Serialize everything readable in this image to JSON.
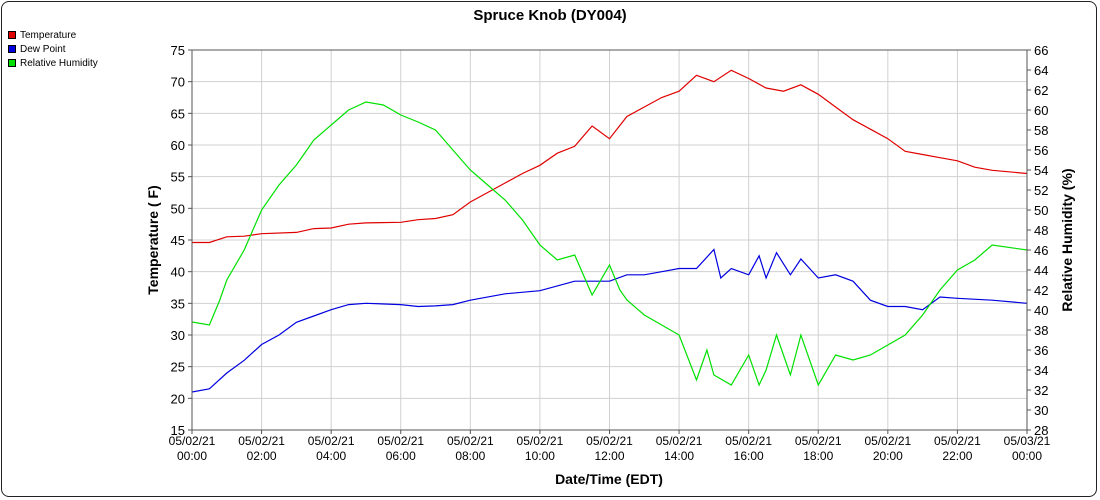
{
  "chart_data": {
    "type": "line",
    "title": "Spruce Knob (DY004)",
    "xlabel": "Date/Time (EDT)",
    "ylabel": "Temperature ( F)",
    "y2label": "Relative Humidity (%)",
    "ylim": [
      15,
      75
    ],
    "y2lim": [
      28,
      66
    ],
    "yticks": [
      "15",
      "20",
      "25",
      "30",
      "35",
      "40",
      "45",
      "50",
      "55",
      "60",
      "65",
      "70",
      "75"
    ],
    "y2ticks": [
      "28",
      "30",
      "32",
      "34",
      "36",
      "38",
      "40",
      "42",
      "44",
      "46",
      "48",
      "50",
      "52",
      "54",
      "56",
      "58",
      "60",
      "62",
      "64",
      "66"
    ],
    "x_ticks": [
      {
        "hour": 0,
        "date": "05/02/21",
        "time": "00:00"
      },
      {
        "hour": 2,
        "date": "05/02/21",
        "time": "02:00"
      },
      {
        "hour": 4,
        "date": "05/02/21",
        "time": "04:00"
      },
      {
        "hour": 6,
        "date": "05/02/21",
        "time": "06:00"
      },
      {
        "hour": 8,
        "date": "05/02/21",
        "time": "08:00"
      },
      {
        "hour": 10,
        "date": "05/02/21",
        "time": "10:00"
      },
      {
        "hour": 12,
        "date": "05/02/21",
        "time": "12:00"
      },
      {
        "hour": 14,
        "date": "05/02/21",
        "time": "14:00"
      },
      {
        "hour": 16,
        "date": "05/02/21",
        "time": "16:00"
      },
      {
        "hour": 18,
        "date": "05/02/21",
        "time": "18:00"
      },
      {
        "hour": 20,
        "date": "05/02/21",
        "time": "20:00"
      },
      {
        "hour": 22,
        "date": "05/02/21",
        "time": "22:00"
      },
      {
        "hour": 24,
        "date": "05/03/21",
        "time": "00:00"
      }
    ],
    "grid": true,
    "legend_position": "top-left",
    "series": [
      {
        "name": "Temperature",
        "color": "#e00000",
        "axis": "left",
        "points": [
          [
            0,
            44.6
          ],
          [
            0.5,
            44.6
          ],
          [
            1,
            45.5
          ],
          [
            1.5,
            45.6
          ],
          [
            2,
            46.0
          ],
          [
            3,
            46.2
          ],
          [
            3.5,
            46.8
          ],
          [
            4,
            46.9
          ],
          [
            4.5,
            47.5
          ],
          [
            5,
            47.7
          ],
          [
            6,
            47.8
          ],
          [
            6.5,
            48.2
          ],
          [
            7,
            48.4
          ],
          [
            7.5,
            49.0
          ],
          [
            8,
            51.0
          ],
          [
            8.5,
            52.5
          ],
          [
            9,
            54.0
          ],
          [
            9.5,
            55.5
          ],
          [
            10,
            56.8
          ],
          [
            10.5,
            58.7
          ],
          [
            11,
            59.8
          ],
          [
            11.5,
            63.0
          ],
          [
            12,
            61.0
          ],
          [
            12.5,
            64.5
          ],
          [
            13,
            66.0
          ],
          [
            13.5,
            67.5
          ],
          [
            14,
            68.5
          ],
          [
            14.5,
            71.0
          ],
          [
            15,
            70.0
          ],
          [
            15.5,
            71.8
          ],
          [
            16,
            70.5
          ],
          [
            16.5,
            69.0
          ],
          [
            17,
            68.5
          ],
          [
            17.5,
            69.5
          ],
          [
            18,
            68.0
          ],
          [
            18.5,
            66.0
          ],
          [
            19,
            64.0
          ],
          [
            19.5,
            62.5
          ],
          [
            20,
            61.0
          ],
          [
            20.5,
            59.0
          ],
          [
            21,
            58.5
          ],
          [
            21.5,
            58.0
          ],
          [
            22,
            57.5
          ],
          [
            22.5,
            56.5
          ],
          [
            23,
            56.0
          ],
          [
            24,
            55.5
          ]
        ]
      },
      {
        "name": "Dew Point",
        "color": "#0000e0",
        "axis": "left",
        "points": [
          [
            0,
            21.0
          ],
          [
            0.5,
            21.5
          ],
          [
            1,
            24.0
          ],
          [
            1.5,
            26.0
          ],
          [
            2,
            28.5
          ],
          [
            2.5,
            30.0
          ],
          [
            3,
            32.0
          ],
          [
            3.5,
            33.0
          ],
          [
            4,
            34.0
          ],
          [
            4.5,
            34.8
          ],
          [
            5,
            35.0
          ],
          [
            6,
            34.8
          ],
          [
            6.5,
            34.5
          ],
          [
            7,
            34.6
          ],
          [
            7.5,
            34.8
          ],
          [
            8,
            35.5
          ],
          [
            9,
            36.5
          ],
          [
            10,
            37.0
          ],
          [
            11,
            38.5
          ],
          [
            12,
            38.5
          ],
          [
            12.5,
            39.5
          ],
          [
            13,
            39.5
          ],
          [
            13.5,
            40.0
          ],
          [
            14,
            40.5
          ],
          [
            14.5,
            40.5
          ],
          [
            15,
            43.5
          ],
          [
            15.2,
            39.0
          ],
          [
            15.5,
            40.5
          ],
          [
            16,
            39.5
          ],
          [
            16.3,
            42.5
          ],
          [
            16.5,
            39.0
          ],
          [
            16.8,
            43.0
          ],
          [
            17.2,
            39.5
          ],
          [
            17.5,
            42.0
          ],
          [
            18,
            39.0
          ],
          [
            18.5,
            39.5
          ],
          [
            19,
            38.5
          ],
          [
            19.5,
            35.5
          ],
          [
            20,
            34.5
          ],
          [
            20.5,
            34.5
          ],
          [
            21,
            34.0
          ],
          [
            21.5,
            36.0
          ],
          [
            22,
            35.8
          ],
          [
            23,
            35.5
          ],
          [
            24,
            35.0
          ]
        ]
      },
      {
        "name": "Relative Humidity",
        "color": "#00e000",
        "axis": "right",
        "points": [
          [
            0,
            38.8
          ],
          [
            0.5,
            38.5
          ],
          [
            0.8,
            41.0
          ],
          [
            1,
            43.0
          ],
          [
            1.5,
            46.0
          ],
          [
            2,
            50.0
          ],
          [
            2.5,
            52.5
          ],
          [
            3,
            54.5
          ],
          [
            3.5,
            57.0
          ],
          [
            4,
            58.5
          ],
          [
            4.5,
            60.0
          ],
          [
            5,
            60.8
          ],
          [
            5.5,
            60.5
          ],
          [
            6,
            59.5
          ],
          [
            6.5,
            58.8
          ],
          [
            7,
            58.0
          ],
          [
            7.5,
            56.0
          ],
          [
            8,
            54.0
          ],
          [
            8.5,
            52.5
          ],
          [
            9,
            51.0
          ],
          [
            9.5,
            49.0
          ],
          [
            10,
            46.5
          ],
          [
            10.5,
            45.0
          ],
          [
            11,
            45.5
          ],
          [
            11.5,
            41.5
          ],
          [
            12,
            44.5
          ],
          [
            12.3,
            42.0
          ],
          [
            12.5,
            41.0
          ],
          [
            13,
            39.5
          ],
          [
            13.5,
            38.5
          ],
          [
            14,
            37.5
          ],
          [
            14.5,
            33.0
          ],
          [
            14.8,
            36.0
          ],
          [
            15,
            33.5
          ],
          [
            15.5,
            32.5
          ],
          [
            16,
            35.5
          ],
          [
            16.3,
            32.5
          ],
          [
            16.5,
            34.0
          ],
          [
            16.8,
            37.5
          ],
          [
            17.2,
            33.5
          ],
          [
            17.5,
            37.5
          ],
          [
            18,
            32.5
          ],
          [
            18.5,
            35.5
          ],
          [
            19,
            35.0
          ],
          [
            19.5,
            35.5
          ],
          [
            20,
            36.5
          ],
          [
            20.5,
            37.5
          ],
          [
            21,
            39.5
          ],
          [
            21.5,
            42.0
          ],
          [
            22,
            44.0
          ],
          [
            22.5,
            45.0
          ],
          [
            23,
            46.5
          ],
          [
            24,
            46.0
          ]
        ]
      }
    ]
  }
}
